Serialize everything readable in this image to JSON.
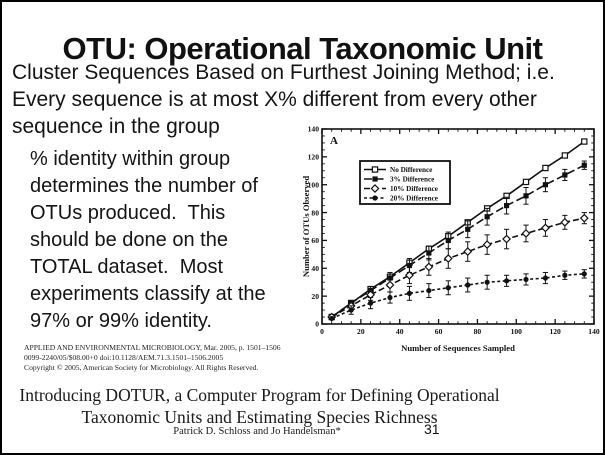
{
  "slide": {
    "title": "OTU: Operational Taxonomic Unit",
    "subtitle_lines": [
      "Cluster Sequences Based on Furthest Joining Method; i.e.",
      "Every sequence is at most X% different from every other",
      "sequence in the group"
    ],
    "body_lines": [
      "% identity within group",
      "determines the number of",
      "OTUs produced.  This",
      "should be done on the",
      "TOTAL dataset.  Most",
      "experiments classify at the",
      "97% or 99% identity."
    ],
    "page_number": "31"
  },
  "citation": {
    "line1": "APPLIED AND ENVIRONMENTAL MICROBIOLOGY, Mar. 2005, p. 1501–1506",
    "line2": "0099-2240/05/$08.00+0   doi:10.1128/AEM.71.3.1501–1506.2005",
    "line3": "Copyright © 2005, American Society for Microbiology. All Rights Reserved."
  },
  "paper": {
    "title_line1": "Introducing DOTUR, a Computer Program for Defining Operational",
    "title_line2": "Taxonomic Units and Estimating Species Richness",
    "authors": "Patrick D. Schloss and Jo Handelsman*"
  },
  "colors": {
    "ink": "#111111",
    "background": "#ffffff",
    "border": "#000000"
  },
  "chart_data": {
    "type": "line",
    "panel_label": "A",
    "xlabel": "Number of Sequences Sampled",
    "ylabel": "Number of OTUs Observed",
    "xlim": [
      0,
      140
    ],
    "ylim": [
      0,
      140
    ],
    "tick_step_major": 20,
    "tick_step_minor": 5,
    "legend_position": "upper-left-inside",
    "x": [
      5,
      15,
      25,
      35,
      45,
      55,
      65,
      75,
      85,
      95,
      105,
      115,
      125,
      135
    ],
    "series": [
      {
        "name": "No Difference",
        "marker": "open-square",
        "line": "solid",
        "values": [
          5,
          15,
          25,
          34,
          44,
          54,
          63,
          73,
          83,
          92,
          102,
          112,
          121,
          131
        ],
        "err": [
          0,
          0,
          0,
          0,
          0,
          0,
          0,
          0,
          0,
          0,
          0,
          0,
          0,
          0
        ]
      },
      {
        "name": "3% Difference",
        "marker": "filled-square",
        "line": "long-dash",
        "values": [
          5,
          15,
          24,
          33,
          42,
          51,
          60,
          68,
          77,
          85,
          92,
          100,
          107,
          114
        ],
        "err": [
          0,
          2,
          3,
          4,
          5,
          5,
          6,
          6,
          6,
          6,
          6,
          5,
          4,
          3
        ]
      },
      {
        "name": "10% Difference",
        "marker": "open-diamond",
        "line": "dash",
        "values": [
          5,
          13,
          21,
          28,
          35,
          41,
          47,
          52,
          57,
          61,
          65,
          69,
          73,
          76
        ],
        "err": [
          0,
          3,
          4,
          5,
          6,
          6,
          7,
          7,
          7,
          7,
          6,
          6,
          5,
          4
        ]
      },
      {
        "name": "20% Difference",
        "marker": "filled-circle",
        "line": "short-dash",
        "values": [
          4,
          10,
          15,
          19,
          22,
          24,
          26,
          28,
          30,
          31,
          32,
          33,
          35,
          36
        ],
        "err": [
          0,
          3,
          4,
          4,
          5,
          5,
          5,
          5,
          5,
          4,
          4,
          4,
          3,
          3
        ]
      }
    ]
  }
}
